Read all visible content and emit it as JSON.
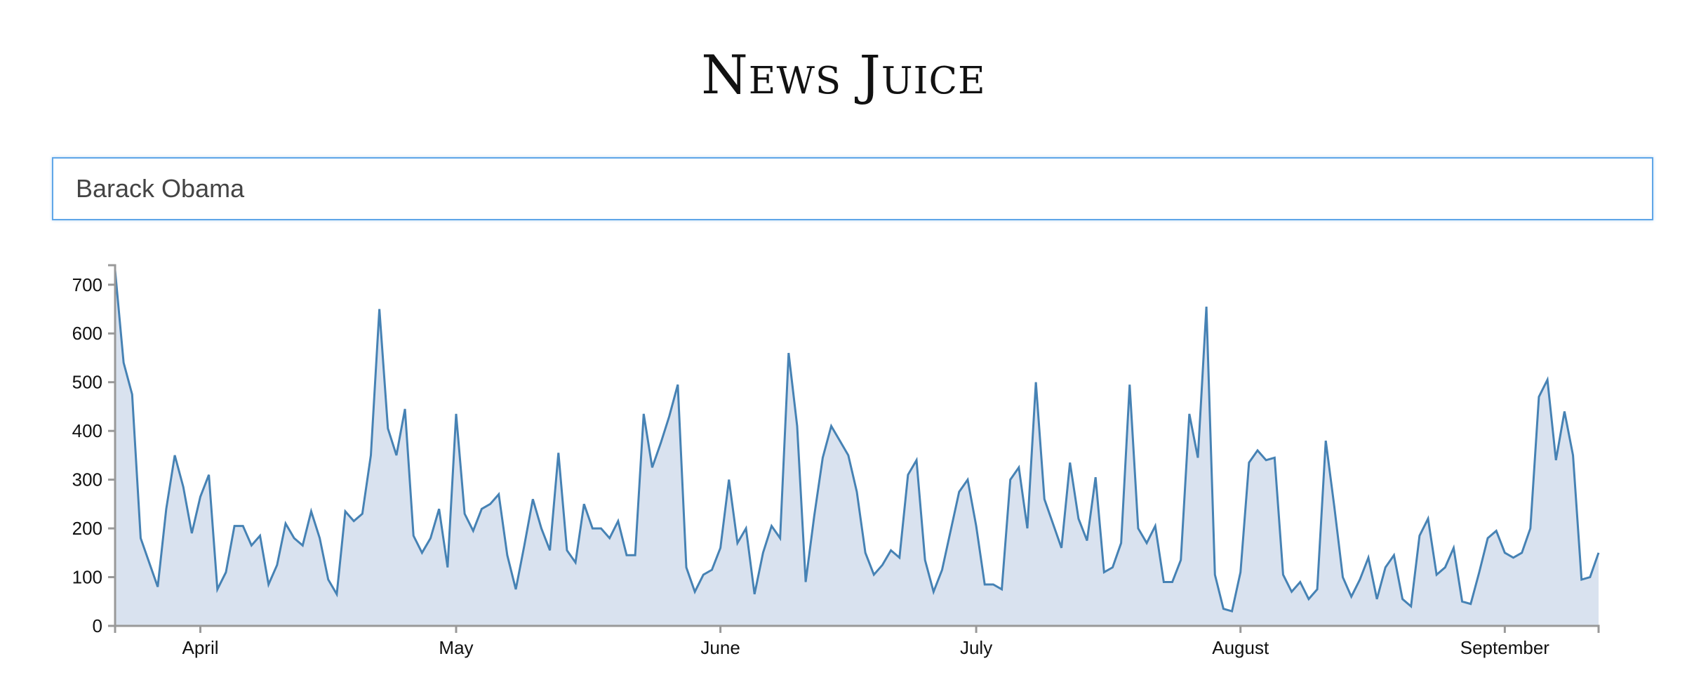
{
  "app": {
    "title": "News Juice"
  },
  "search": {
    "value": "Barack Obama"
  },
  "colors": {
    "line": "#4682b4",
    "area": "#d9e2ef",
    "axis": "#999999",
    "focus": "#5fa6e8"
  },
  "chart_data": {
    "type": "area",
    "title": "",
    "xlabel": "",
    "ylabel": "",
    "x_start": "2016-03-22",
    "x_interval": "1 day",
    "ylim": [
      0,
      740
    ],
    "yticks": [
      0,
      100,
      200,
      300,
      400,
      500,
      600,
      700
    ],
    "xticks": [
      {
        "label": "April",
        "date": "2016-04-01"
      },
      {
        "label": "May",
        "date": "2016-05-01"
      },
      {
        "label": "June",
        "date": "2016-06-01"
      },
      {
        "label": "July",
        "date": "2016-07-01"
      },
      {
        "label": "August",
        "date": "2016-08-01"
      },
      {
        "label": "September",
        "date": "2016-09-01"
      }
    ],
    "grid": false,
    "values": [
      730,
      540,
      475,
      180,
      130,
      80,
      240,
      350,
      285,
      190,
      265,
      310,
      75,
      110,
      205,
      205,
      165,
      185,
      85,
      125,
      210,
      180,
      165,
      235,
      180,
      95,
      65,
      235,
      215,
      230,
      350,
      650,
      405,
      350,
      445,
      185,
      150,
      180,
      240,
      120,
      435,
      230,
      195,
      240,
      250,
      270,
      145,
      75,
      165,
      260,
      200,
      155,
      355,
      155,
      130,
      250,
      200,
      200,
      180,
      215,
      145,
      145,
      435,
      325,
      375,
      430,
      495,
      120,
      70,
      105,
      115,
      160,
      300,
      170,
      200,
      65,
      150,
      205,
      180,
      560,
      410,
      90,
      225,
      345,
      410,
      380,
      350,
      275,
      150,
      105,
      125,
      155,
      140,
      310,
      340,
      135,
      70,
      115,
      195,
      275,
      300,
      205,
      85,
      85,
      75,
      300,
      325,
      200,
      500,
      260,
      210,
      160,
      335,
      220,
      175,
      305,
      110,
      120,
      170,
      495,
      200,
      170,
      205,
      90,
      90,
      135,
      435,
      345,
      655,
      105,
      35,
      30,
      110,
      335,
      360,
      340,
      345,
      105,
      70,
      90,
      55,
      75,
      380,
      245,
      100,
      60,
      95,
      140,
      55,
      120,
      145,
      55,
      40,
      185,
      220,
      105,
      120,
      160,
      50,
      45,
      110,
      180,
      195,
      150,
      140,
      150,
      200,
      470,
      505,
      340,
      440,
      350,
      95,
      100,
      150
    ]
  }
}
